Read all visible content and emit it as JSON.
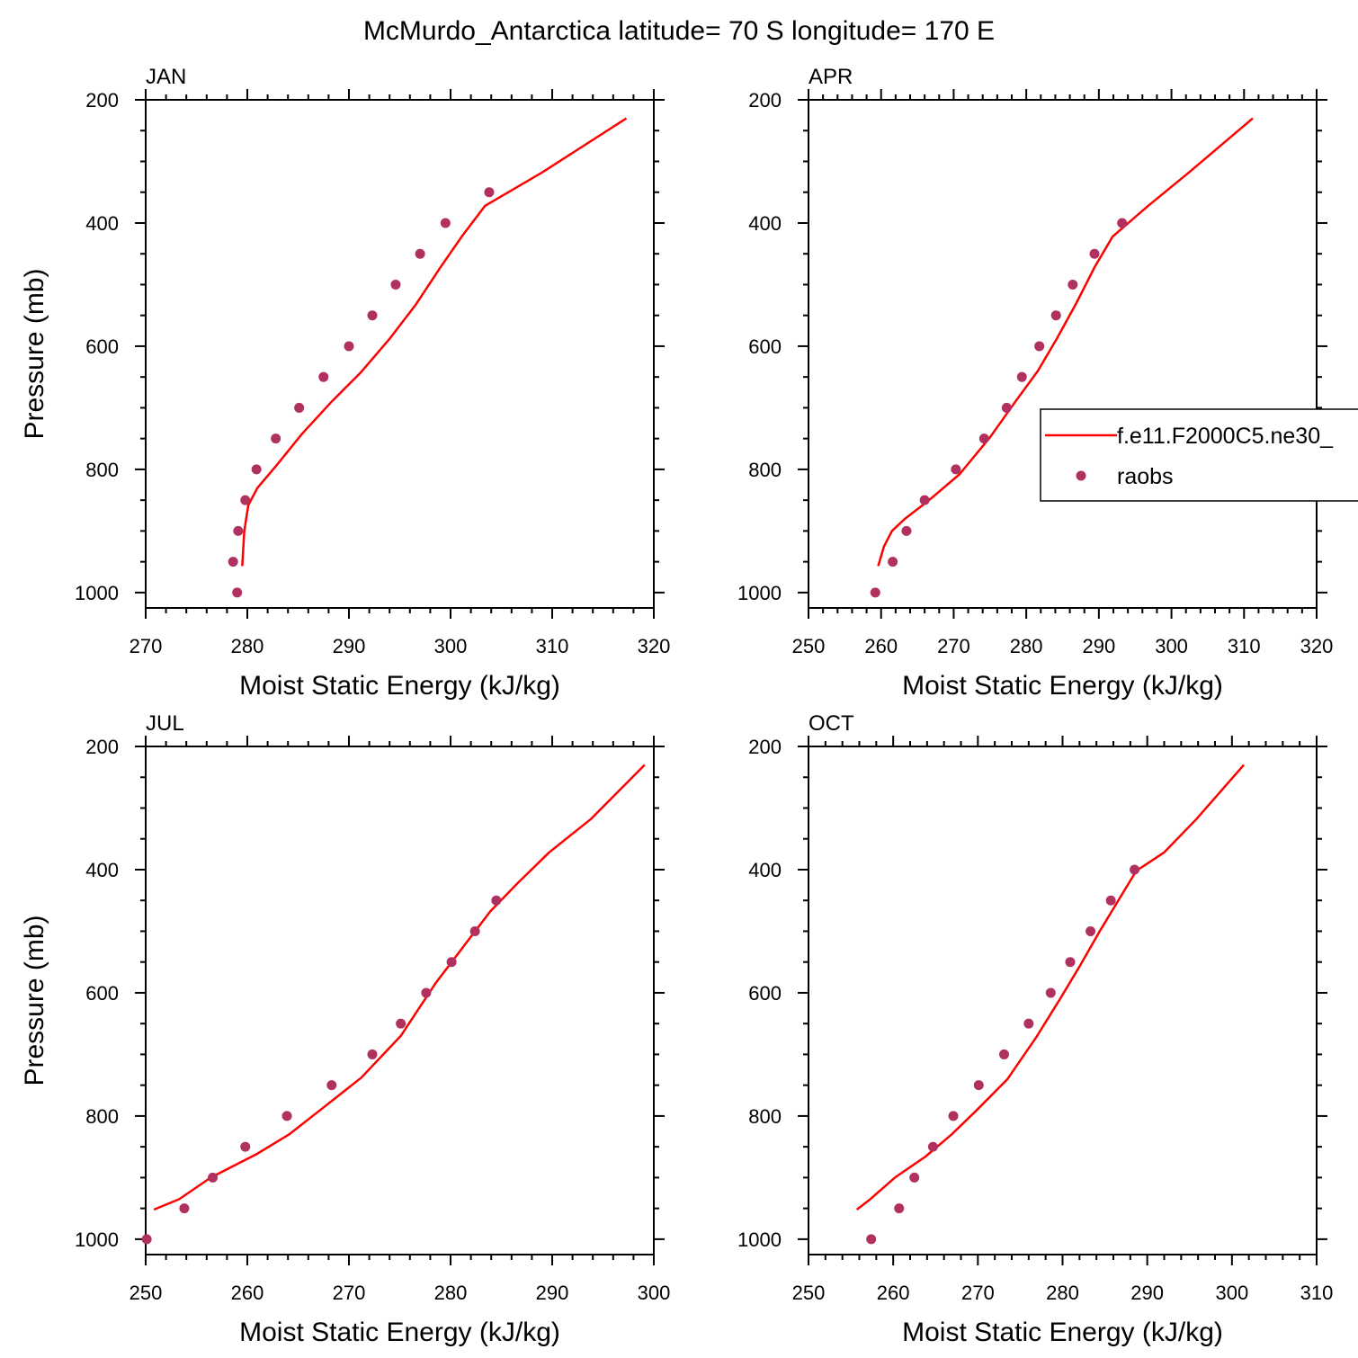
{
  "figure": {
    "title": "McMurdo_Antarctica  latitude= 70 S longitude= 170 E"
  },
  "legend": {
    "model_label": "f.e11.F2000C5.ne30_",
    "obs_label": "raobs",
    "panel": 1
  },
  "colors": {
    "model": "#ff0000",
    "obs": "#b03060",
    "axis": "#000000"
  },
  "chart_data": [
    {
      "type": "line",
      "panel_label": "JAN",
      "xlabel": "Moist Static Energy (kJ/kg)",
      "ylabel": "Pressure (mb)",
      "xlim": [
        270,
        320
      ],
      "ylim": [
        1025,
        200
      ],
      "y_reversed": true,
      "xticks": [
        270,
        280,
        290,
        300,
        310,
        320
      ],
      "yticks": [
        200,
        400,
        600,
        800,
        1000
      ],
      "series": [
        {
          "name": "f.e11.F2000C5.ne30_",
          "kind": "line",
          "x": [
            279.5,
            279.7,
            280.1,
            281.0,
            282.8,
            285.4,
            288.3,
            291.2,
            294.0,
            296.6,
            299.0,
            301.1,
            303.4,
            309.0,
            317.3
          ],
          "y": [
            957,
            900,
            858,
            830,
            795,
            742,
            690,
            642,
            588,
            532,
            472,
            422,
            372,
            318,
            230
          ]
        },
        {
          "name": "raobs",
          "kind": "scatter",
          "x": [
            279.0,
            278.6,
            279.1,
            279.8,
            280.9,
            282.8,
            285.1,
            287.5,
            290.0,
            292.3,
            294.6,
            297.0,
            299.5,
            303.8
          ],
          "y": [
            1000,
            950,
            900,
            850,
            800,
            750,
            700,
            650,
            600,
            550,
            500,
            450,
            400,
            350
          ]
        }
      ]
    },
    {
      "type": "line",
      "panel_label": "APR",
      "xlabel": "Moist Static Energy (kJ/kg)",
      "ylabel": "",
      "xlim": [
        250,
        320
      ],
      "ylim": [
        1025,
        200
      ],
      "y_reversed": true,
      "xticks": [
        250,
        260,
        270,
        280,
        290,
        300,
        310,
        320
      ],
      "yticks": [
        200,
        400,
        600,
        800,
        1000
      ],
      "series": [
        {
          "name": "f.e11.F2000C5.ne30_",
          "kind": "line",
          "x": [
            259.6,
            260.4,
            261.5,
            263.3,
            266.4,
            270.8,
            275.0,
            278.5,
            281.6,
            284.2,
            286.9,
            289.4,
            291.9,
            296.8,
            302.4,
            311.2
          ],
          "y": [
            957,
            925,
            900,
            880,
            852,
            808,
            748,
            690,
            640,
            588,
            530,
            472,
            422,
            372,
            318,
            230
          ]
        },
        {
          "name": "raobs",
          "kind": "scatter",
          "x": [
            259.2,
            261.6,
            263.5,
            266.0,
            270.3,
            274.2,
            277.3,
            279.4,
            281.8,
            284.1,
            286.4,
            289.4,
            293.2
          ],
          "y": [
            1000,
            950,
            900,
            850,
            800,
            750,
            700,
            650,
            600,
            550,
            500,
            450,
            400
          ]
        }
      ]
    },
    {
      "type": "line",
      "panel_label": "JUL",
      "xlabel": "Moist Static Energy (kJ/kg)",
      "ylabel": "Pressure (mb)",
      "xlim": [
        250,
        300
      ],
      "ylim": [
        1025,
        200
      ],
      "y_reversed": true,
      "xticks": [
        250,
        260,
        270,
        280,
        290,
        300
      ],
      "yticks": [
        200,
        400,
        600,
        800,
        1000
      ],
      "series": [
        {
          "name": "f.e11.F2000C5.ne30_",
          "kind": "line",
          "x": [
            250.8,
            253.3,
            256.4,
            260.9,
            264.1,
            267.2,
            271.2,
            275.1,
            278.5,
            281.4,
            283.9,
            286.6,
            289.7,
            293.8,
            299.1
          ],
          "y": [
            952,
            935,
            900,
            862,
            830,
            790,
            738,
            670,
            585,
            522,
            468,
            422,
            372,
            318,
            230
          ]
        },
        {
          "name": "raobs",
          "kind": "scatter",
          "x": [
            250.1,
            253.8,
            256.6,
            259.8,
            263.9,
            268.3,
            272.3,
            275.1,
            277.6,
            280.1,
            282.4,
            284.5
          ],
          "y": [
            1000,
            950,
            900,
            850,
            800,
            750,
            700,
            650,
            600,
            550,
            500,
            450
          ]
        }
      ]
    },
    {
      "type": "line",
      "panel_label": "OCT",
      "xlabel": "Moist Static Energy (kJ/kg)",
      "ylabel": "",
      "xlim": [
        250,
        310
      ],
      "ylim": [
        1025,
        200
      ],
      "y_reversed": true,
      "xticks": [
        250,
        260,
        270,
        280,
        290,
        300,
        310
      ],
      "yticks": [
        200,
        400,
        600,
        800,
        1000
      ],
      "series": [
        {
          "name": "f.e11.F2000C5.ne30_",
          "kind": "line",
          "x": [
            255.7,
            257.3,
            260.2,
            263.8,
            266.9,
            269.9,
            273.5,
            276.9,
            279.7,
            282.1,
            284.3,
            286.5,
            288.7,
            292.0,
            295.8,
            301.4
          ],
          "y": [
            952,
            935,
            900,
            866,
            830,
            790,
            740,
            672,
            610,
            555,
            502,
            452,
            402,
            372,
            318,
            230
          ]
        },
        {
          "name": "raobs",
          "kind": "scatter",
          "x": [
            257.4,
            260.7,
            262.5,
            264.7,
            267.1,
            270.1,
            273.1,
            276.0,
            278.6,
            280.9,
            283.3,
            285.7,
            288.5
          ],
          "y": [
            1000,
            950,
            900,
            850,
            800,
            750,
            700,
            650,
            600,
            550,
            500,
            450,
            400
          ]
        }
      ]
    }
  ]
}
